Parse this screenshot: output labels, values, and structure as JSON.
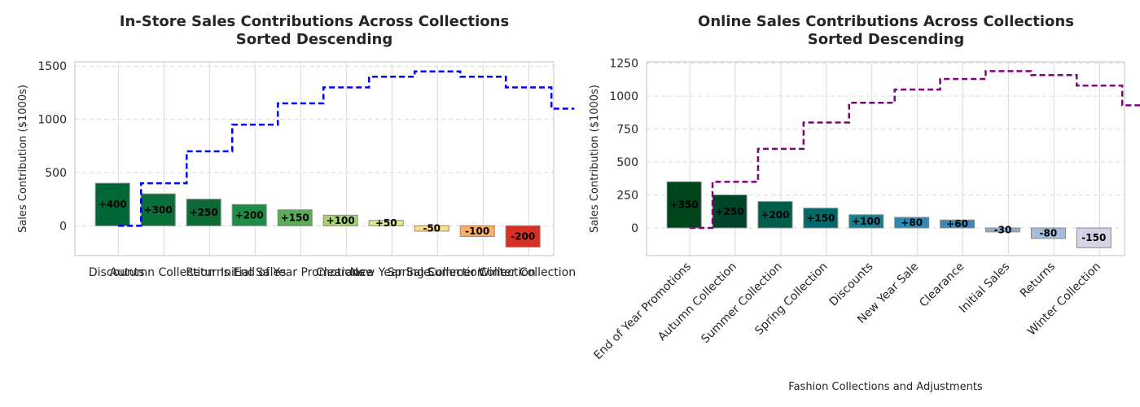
{
  "chart_data": [
    {
      "type": "bar",
      "title": "In-Store Sales Contributions Across Collections\nSorted Descending",
      "xlabel": "",
      "ylabel": "Sales Contribution ($1000s)",
      "ylim": [
        -280,
        1540
      ],
      "yticks": [
        0,
        500,
        1000,
        1500
      ],
      "xtick_rotation": 0,
      "grid": true,
      "categories": [
        "Discounts",
        "Autumn Collection",
        "Returns",
        "Initial Sales",
        "End of Year Promotions",
        "Clearance",
        "New Year Sale",
        "Spring Collection",
        "Summer Collection",
        "Winter Collection"
      ],
      "values": [
        400,
        300,
        250,
        200,
        150,
        100,
        50,
        -50,
        -100,
        -200
      ],
      "bar_labels": [
        "+400",
        "+300",
        "+250",
        "+200",
        "+150",
        "+100",
        "+50",
        "-50",
        "-100",
        "-200"
      ],
      "bar_colors": [
        "#006837",
        "#0a6d3a",
        "#0d6a36",
        "#1e8c47",
        "#5aac5a",
        "#a7d46a",
        "#d9ef8b",
        "#fee08b",
        "#fdae61",
        "#d73027"
      ],
      "cumulative_line": {
        "color": "#0000ff",
        "values": [
          0,
          400,
          700,
          950,
          1150,
          1300,
          1400,
          1450,
          1400,
          1300,
          1100
        ]
      }
    },
    {
      "type": "bar",
      "title": "Online Sales Contributions Across Collections\nSorted Descending",
      "xlabel": "Fashion Collections and Adjustments",
      "ylabel": "Sales Contribution ($1000s)",
      "ylim": [
        -210,
        1260
      ],
      "yticks": [
        0,
        250,
        500,
        750,
        1000,
        1250
      ],
      "xtick_rotation": -45,
      "grid": true,
      "categories": [
        "End of Year Promotions",
        "Autumn Collection",
        "Summer Collection",
        "Spring Collection",
        "Discounts",
        "New Year Sale",
        "Clearance",
        "Initial Sales",
        "Returns",
        "Winter Collection"
      ],
      "values": [
        350,
        250,
        200,
        150,
        100,
        80,
        60,
        -30,
        -80,
        -150
      ],
      "bar_labels": [
        "+350",
        "+250",
        "+200",
        "+150",
        "+100",
        "+80",
        "+60",
        "-30",
        "-80",
        "-150"
      ],
      "bar_colors": [
        "#00441b",
        "#00432a",
        "#005d4c",
        "#006a6a",
        "#1a7d8e",
        "#2a8ab8",
        "#3a89b8",
        "#8fb3cf",
        "#a6bddb",
        "#d6d3e6"
      ],
      "cumulative_line": {
        "color": "#800080",
        "values": [
          0,
          350,
          600,
          800,
          950,
          1050,
          1130,
          1190,
          1160,
          1080,
          930
        ]
      }
    }
  ]
}
